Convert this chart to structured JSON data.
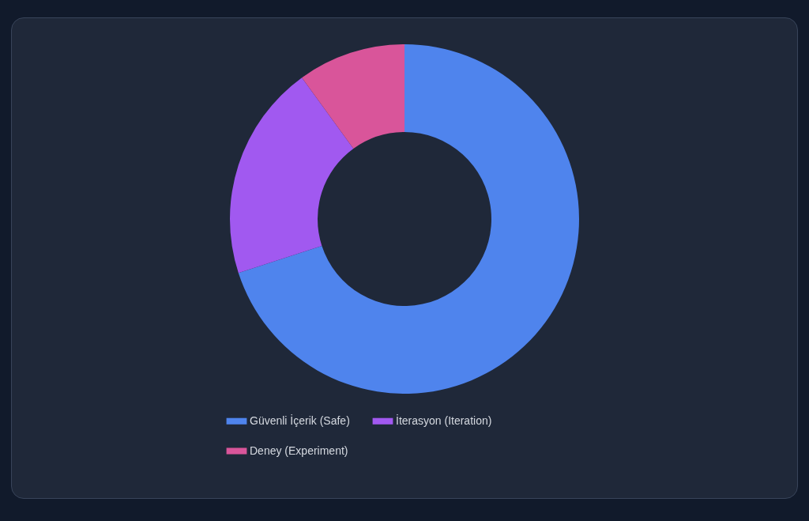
{
  "chart_data": {
    "type": "donut",
    "categories": [
      "Güvenli İçerik (Safe)",
      "İterasyon (Iteration)",
      "Deney (Experiment)"
    ],
    "values": [
      70,
      20,
      10
    ],
    "colors": [
      "#4f84ed",
      "#a159f0",
      "#d9559a"
    ],
    "legend": "bottom"
  }
}
